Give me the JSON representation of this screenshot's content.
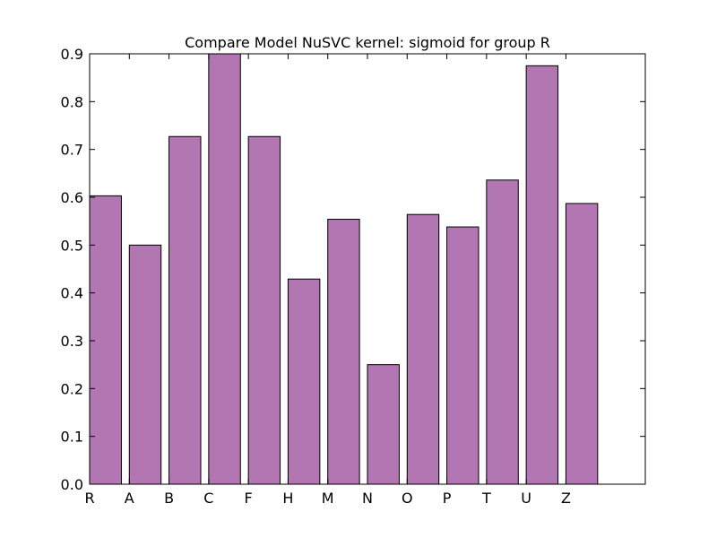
{
  "chart_data": {
    "type": "bar",
    "title": "Compare Model NuSVC kernel: sigmoid for group R",
    "xlabel": "",
    "ylabel": "",
    "categories": [
      "R",
      "A",
      "B",
      "C",
      "F",
      "H",
      "M",
      "N",
      "O",
      "P",
      "T",
      "U",
      "Z"
    ],
    "values": [
      0.603,
      0.5,
      0.727,
      0.9,
      0.727,
      0.429,
      0.554,
      0.25,
      0.564,
      0.538,
      0.636,
      0.875,
      0.587
    ],
    "ylim": [
      0,
      0.9
    ],
    "yticks": [
      "0.0",
      "0.1",
      "0.2",
      "0.3",
      "0.4",
      "0.5",
      "0.6",
      "0.7",
      "0.8",
      "0.9"
    ],
    "bar_color": "#b276b2",
    "bar_edge_color": "#000000",
    "grid": false,
    "legend": "none"
  }
}
